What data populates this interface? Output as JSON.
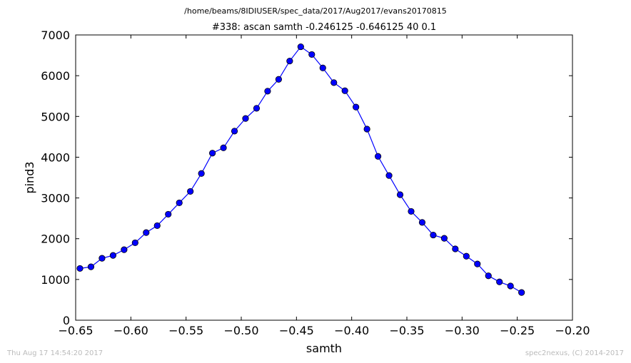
{
  "chart_data": {
    "type": "line",
    "suptitle": "/home/beams/8IDIUSER/spec_data/2017/Aug2017/evans20170815",
    "title": "#338: ascan  samth -0.246125 -0.646125  40 0.1",
    "xlabel": "samth",
    "ylabel": "pind3",
    "xlim": [
      -0.65,
      -0.2
    ],
    "ylim": [
      0,
      7000
    ],
    "xticks": [
      -0.65,
      -0.6,
      -0.55,
      -0.5,
      -0.45,
      -0.4,
      -0.35,
      -0.3,
      -0.25,
      -0.2
    ],
    "xtick_labels": [
      "−0.65",
      "−0.60",
      "−0.55",
      "−0.50",
      "−0.45",
      "−0.40",
      "−0.35",
      "−0.30",
      "−0.25",
      "−0.20"
    ],
    "yticks": [
      0,
      1000,
      2000,
      3000,
      4000,
      5000,
      6000,
      7000
    ],
    "ytick_labels": [
      "0",
      "1000",
      "2000",
      "3000",
      "4000",
      "5000",
      "6000",
      "7000"
    ],
    "grid": false,
    "series": [
      {
        "color": "#0000ff",
        "marker": "circle",
        "x": [
          -0.646125,
          -0.636125,
          -0.626125,
          -0.616125,
          -0.606125,
          -0.596125,
          -0.586125,
          -0.576125,
          -0.566125,
          -0.556125,
          -0.546125,
          -0.536125,
          -0.526125,
          -0.516125,
          -0.506125,
          -0.496125,
          -0.486125,
          -0.476125,
          -0.466125,
          -0.456125,
          -0.446125,
          -0.436125,
          -0.426125,
          -0.416125,
          -0.406125,
          -0.396125,
          -0.386125,
          -0.376125,
          -0.366125,
          -0.356125,
          -0.346125,
          -0.336125,
          -0.326125,
          -0.316125,
          -0.306125,
          -0.296125,
          -0.286125,
          -0.276125,
          -0.266125,
          -0.256125,
          -0.246125
        ],
        "y": [
          1270,
          1310,
          1520,
          1590,
          1730,
          1900,
          2150,
          2320,
          2600,
          2880,
          3160,
          3600,
          4100,
          4230,
          4640,
          4950,
          5200,
          5620,
          5910,
          6360,
          6710,
          6520,
          6190,
          5830,
          5630,
          5230,
          4690,
          4020,
          3550,
          3080,
          2670,
          2400,
          2090,
          2010,
          1750,
          1570,
          1380,
          1090,
          940,
          840,
          680
        ]
      }
    ]
  },
  "footer": {
    "timestamp": "Thu Aug 17 14:54:20 2017",
    "credit": "spec2nexus, (C) 2014-2017"
  }
}
